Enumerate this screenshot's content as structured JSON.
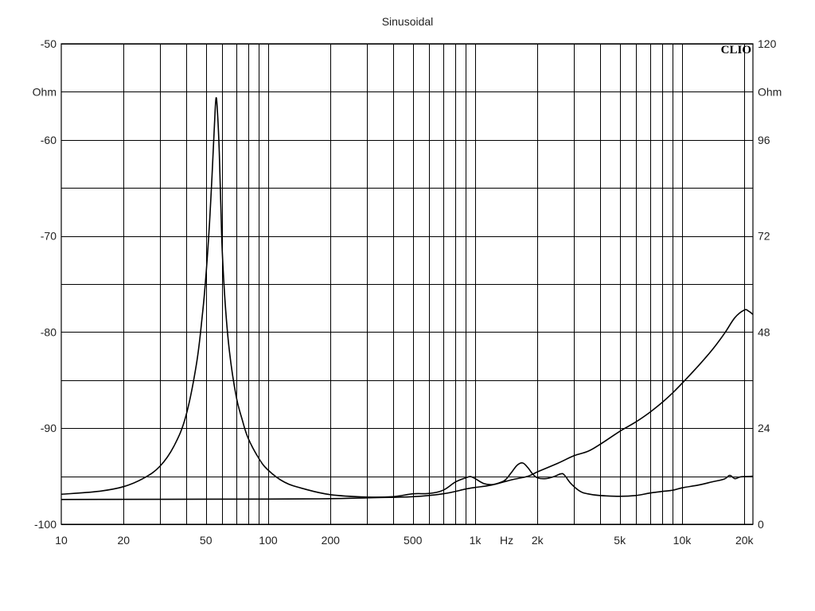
{
  "chart_data": {
    "type": "line",
    "title": "Sinusoidal",
    "brand": "CLIO",
    "xlabel": "Hz",
    "xscale": "log",
    "xlim": [
      10,
      22000
    ],
    "x_ticks": [
      {
        "value": 10,
        "label": "10"
      },
      {
        "value": 20,
        "label": "20"
      },
      {
        "value": 50,
        "label": "50"
      },
      {
        "value": 100,
        "label": "100"
      },
      {
        "value": 200,
        "label": "200"
      },
      {
        "value": 500,
        "label": "500"
      },
      {
        "value": 1000,
        "label": "1k"
      },
      {
        "value": 2000,
        "label": "2k"
      },
      {
        "value": 5000,
        "label": "5k"
      },
      {
        "value": 10000,
        "label": "10k"
      },
      {
        "value": 20000,
        "label": "20k"
      }
    ],
    "x_minor_lines": [
      30,
      40,
      60,
      70,
      80,
      90,
      300,
      400,
      600,
      700,
      800,
      900,
      3000,
      4000,
      6000,
      7000,
      8000,
      9000
    ],
    "hz_label_value": 1420,
    "y_left": {
      "unit": "Ohm",
      "range": [
        -100,
        -50
      ],
      "tick_values": [
        -100,
        -90,
        -80,
        -70,
        -60,
        -50
      ],
      "tick_labels": [
        "-100",
        "-90",
        "-80",
        "-70",
        "-60",
        "-50"
      ]
    },
    "y_right": {
      "unit": "Ohm",
      "range": [
        0,
        120
      ],
      "tick_values": [
        0,
        24,
        48,
        72,
        96,
        120
      ],
      "tick_labels": [
        "0",
        "24",
        "48",
        "72",
        "96",
        "120"
      ]
    },
    "h_grid_right": [
      0,
      12,
      24,
      36,
      48,
      60,
      72,
      84,
      96,
      108,
      120
    ],
    "grid": true,
    "series": [
      {
        "axis": "right",
        "points": [
          [
            10,
            7.5
          ],
          [
            15,
            8.2
          ],
          [
            20,
            9.4
          ],
          [
            25,
            11.5
          ],
          [
            30,
            14.5
          ],
          [
            35,
            19.5
          ],
          [
            40,
            27
          ],
          [
            45,
            40
          ],
          [
            48,
            52
          ],
          [
            50,
            62
          ],
          [
            52,
            75
          ],
          [
            53.5,
            87
          ],
          [
            55,
            100
          ],
          [
            56,
            106.5
          ],
          [
            57,
            102
          ],
          [
            58,
            93
          ],
          [
            59,
            80
          ],
          [
            60,
            68
          ],
          [
            62,
            55
          ],
          [
            65,
            43
          ],
          [
            70,
            32
          ],
          [
            75,
            26
          ],
          [
            80,
            21.5
          ],
          [
            90,
            16.5
          ],
          [
            100,
            13.5
          ],
          [
            120,
            10.5
          ],
          [
            150,
            8.8
          ],
          [
            200,
            7.4
          ],
          [
            300,
            6.8
          ],
          [
            400,
            6.9
          ],
          [
            500,
            7.6
          ],
          [
            600,
            7.7
          ],
          [
            700,
            8.5
          ],
          [
            800,
            10.5
          ],
          [
            900,
            11.6
          ],
          [
            950,
            11.9
          ],
          [
            1000,
            11.4
          ],
          [
            1100,
            10.2
          ],
          [
            1200,
            9.9
          ],
          [
            1300,
            10.3
          ],
          [
            1400,
            11.1
          ],
          [
            1500,
            13
          ],
          [
            1600,
            14.8
          ],
          [
            1700,
            15.3
          ],
          [
            1800,
            14.1
          ],
          [
            1900,
            12.5
          ],
          [
            2000,
            11.6
          ],
          [
            2200,
            11.4
          ],
          [
            2400,
            11.9
          ],
          [
            2600,
            12.6
          ],
          [
            2700,
            12.3
          ],
          [
            2900,
            10.2
          ],
          [
            3200,
            8.3
          ],
          [
            3500,
            7.6
          ],
          [
            4000,
            7.2
          ],
          [
            5000,
            7.0
          ],
          [
            6000,
            7.2
          ],
          [
            7000,
            7.8
          ],
          [
            8000,
            8.2
          ],
          [
            9000,
            8.5
          ],
          [
            10000,
            9.1
          ],
          [
            12000,
            9.8
          ],
          [
            14000,
            10.6
          ],
          [
            16000,
            11.3
          ],
          [
            17000,
            12.2
          ],
          [
            18000,
            11.4
          ],
          [
            19000,
            11.8
          ],
          [
            20000,
            11.9
          ],
          [
            22000,
            12.0
          ]
        ]
      },
      {
        "axis": "right",
        "points": [
          [
            10,
            6.2
          ],
          [
            100,
            6.3
          ],
          [
            200,
            6.4
          ],
          [
            300,
            6.6
          ],
          [
            500,
            6.9
          ],
          [
            700,
            7.6
          ],
          [
            900,
            8.8
          ],
          [
            1000,
            9.2
          ],
          [
            1200,
            9.8
          ],
          [
            1500,
            11.1
          ],
          [
            1800,
            12.0
          ],
          [
            2000,
            13.1
          ],
          [
            2500,
            15.2
          ],
          [
            3000,
            17.1
          ],
          [
            3500,
            18.2
          ],
          [
            4000,
            19.9
          ],
          [
            5000,
            23.2
          ],
          [
            6000,
            25.6
          ],
          [
            7000,
            28.0
          ],
          [
            8000,
            30.4
          ],
          [
            9000,
            32.8
          ],
          [
            10000,
            35.2
          ],
          [
            12000,
            39.6
          ],
          [
            14000,
            43.6
          ],
          [
            16000,
            47.6
          ],
          [
            18000,
            51.6
          ],
          [
            20000,
            53.5
          ],
          [
            21000,
            53.2
          ],
          [
            22000,
            52.4
          ]
        ]
      }
    ]
  }
}
